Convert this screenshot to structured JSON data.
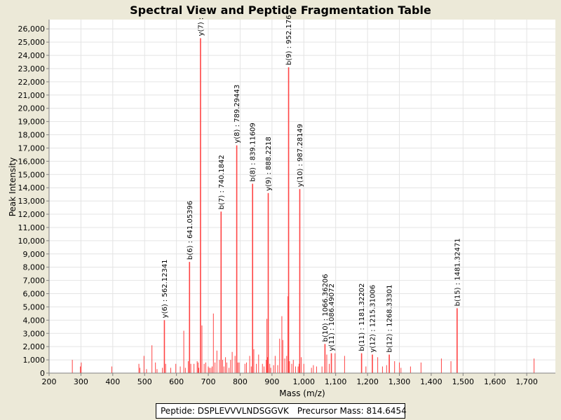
{
  "chart_data": {
    "type": "spectrum",
    "title": "Spectral View and Peptide Fragmentation Table",
    "xlabel": "Mass (m/z)",
    "ylabel": "Peak Intensity",
    "xlim": [
      200,
      1790
    ],
    "ylim": [
      0,
      26700
    ],
    "x_ticks": [
      200,
      300,
      400,
      500,
      600,
      700,
      800,
      900,
      1000,
      1100,
      1200,
      1300,
      1400,
      1500,
      1600,
      1700
    ],
    "x_tick_labels": [
      "200",
      "300",
      "400",
      "500",
      "600",
      "700",
      "800",
      "900",
      "1,000",
      "1,100",
      "1,200",
      "1,300",
      "1,400",
      "1,500",
      "1,600",
      "1,700"
    ],
    "y_ticks": [
      0,
      1000,
      2000,
      3000,
      4000,
      5000,
      6000,
      7000,
      8000,
      9000,
      10000,
      11000,
      12000,
      13000,
      14000,
      15000,
      16000,
      17000,
      18000,
      19000,
      20000,
      21000,
      22000,
      23000,
      24000,
      25000,
      26000
    ],
    "y_tick_labels": [
      "0",
      "1,000",
      "2,000",
      "3,000",
      "4,000",
      "5,000",
      "6,000",
      "7,000",
      "8,000",
      "9,000",
      "10,000",
      "11,000",
      "12,000",
      "13,000",
      "14,000",
      "15,000",
      "16,000",
      "17,000",
      "18,000",
      "19,000",
      "20,000",
      "21,000",
      "22,000",
      "23,000",
      "24,000",
      "25,000",
      "26,000"
    ],
    "peak_color": "#ff4444",
    "annotated_peaks": [
      {
        "mz": 562.12341,
        "intensity": 4000,
        "label": "y(6) : 562.12341"
      },
      {
        "mz": 641.05396,
        "intensity": 8400,
        "label": "b(6) : 641.05396"
      },
      {
        "mz": 675.5,
        "intensity": 25300,
        "label": "y(7) :"
      },
      {
        "mz": 740.1842,
        "intensity": 12200,
        "label": "b(7) : 740.1842"
      },
      {
        "mz": 789.29443,
        "intensity": 17200,
        "label": "y(8) : 789.29443"
      },
      {
        "mz": 839.11609,
        "intensity": 14300,
        "label": "b(8) : 839.11609"
      },
      {
        "mz": 888.2218,
        "intensity": 13600,
        "label": "y(9) : 888.2218"
      },
      {
        "mz": 952.176,
        "intensity": 23100,
        "label": "b(9) : 952.176"
      },
      {
        "mz": 987.28149,
        "intensity": 13900,
        "label": "y(10) : 987.28149"
      },
      {
        "mz": 1066.36206,
        "intensity": 2200,
        "label": "b(10) : 1066.36206"
      },
      {
        "mz": 1086.49072,
        "intensity": 1500,
        "label": "y(11) : 1086.49072"
      },
      {
        "mz": 1181.32202,
        "intensity": 1500,
        "label": "b(11) : 1181.32202"
      },
      {
        "mz": 1215.31006,
        "intensity": 1400,
        "label": "y(12) : 1215.31006"
      },
      {
        "mz": 1268.33301,
        "intensity": 1400,
        "label": "b(12) : 1268.33301"
      },
      {
        "mz": 1481.32471,
        "intensity": 4900,
        "label": "b(15) : 1481.32471"
      }
    ],
    "other_peaks": [
      [
        273,
        1000
      ],
      [
        298,
        500
      ],
      [
        301,
        800
      ],
      [
        397,
        500
      ],
      [
        482,
        700
      ],
      [
        485,
        400
      ],
      [
        498,
        1300
      ],
      [
        506,
        300
      ],
      [
        523,
        2100
      ],
      [
        534,
        800
      ],
      [
        539,
        300
      ],
      [
        556,
        400
      ],
      [
        566,
        700
      ],
      [
        582,
        400
      ],
      [
        598,
        700
      ],
      [
        612,
        500
      ],
      [
        623,
        3200
      ],
      [
        628,
        400
      ],
      [
        637,
        900
      ],
      [
        645,
        700
      ],
      [
        655,
        700
      ],
      [
        665,
        900
      ],
      [
        668,
        800
      ],
      [
        670,
        400
      ],
      [
        680,
        3600
      ],
      [
        687,
        700
      ],
      [
        692,
        800
      ],
      [
        700,
        500
      ],
      [
        703,
        400
      ],
      [
        708,
        400
      ],
      [
        712,
        500
      ],
      [
        716,
        4500
      ],
      [
        721,
        800
      ],
      [
        727,
        1700
      ],
      [
        735,
        1000
      ],
      [
        745,
        1000
      ],
      [
        749,
        500
      ],
      [
        754,
        1200
      ],
      [
        758,
        800
      ],
      [
        765,
        400
      ],
      [
        770,
        1000
      ],
      [
        775,
        1600
      ],
      [
        784,
        1300
      ],
      [
        793,
        800
      ],
      [
        797,
        800
      ],
      [
        815,
        700
      ],
      [
        820,
        800
      ],
      [
        830,
        1300
      ],
      [
        835,
        500
      ],
      [
        843,
        1800
      ],
      [
        851,
        700
      ],
      [
        858,
        1400
      ],
      [
        870,
        700
      ],
      [
        875,
        500
      ],
      [
        882,
        1000
      ],
      [
        884,
        4100
      ],
      [
        886,
        1200
      ],
      [
        893,
        700
      ],
      [
        896,
        400
      ],
      [
        905,
        600
      ],
      [
        910,
        1300
      ],
      [
        918,
        600
      ],
      [
        924,
        2600
      ],
      [
        931,
        4300
      ],
      [
        934,
        2500
      ],
      [
        940,
        1100
      ],
      [
        946,
        1300
      ],
      [
        950,
        5800
      ],
      [
        955,
        900
      ],
      [
        962,
        700
      ],
      [
        967,
        1000
      ],
      [
        974,
        500
      ],
      [
        982,
        500
      ],
      [
        985,
        700
      ],
      [
        992,
        1200
      ],
      [
        1000,
        700
      ],
      [
        1024,
        400
      ],
      [
        1030,
        600
      ],
      [
        1040,
        500
      ],
      [
        1057,
        500
      ],
      [
        1072,
        1400
      ],
      [
        1080,
        700
      ],
      [
        1098,
        1500
      ],
      [
        1128,
        1300
      ],
      [
        1195,
        500
      ],
      [
        1232,
        1200
      ],
      [
        1247,
        500
      ],
      [
        1260,
        600
      ],
      [
        1285,
        900
      ],
      [
        1300,
        800
      ],
      [
        1305,
        400
      ],
      [
        1335,
        500
      ],
      [
        1368,
        800
      ],
      [
        1432,
        1100
      ],
      [
        1462,
        900
      ],
      [
        1723,
        1100
      ]
    ]
  },
  "legend": {
    "peptide_label": "Peptide: DSPLEVVVLNDSGGVK",
    "precursor_label": "Precursor Mass: 814.6454"
  }
}
